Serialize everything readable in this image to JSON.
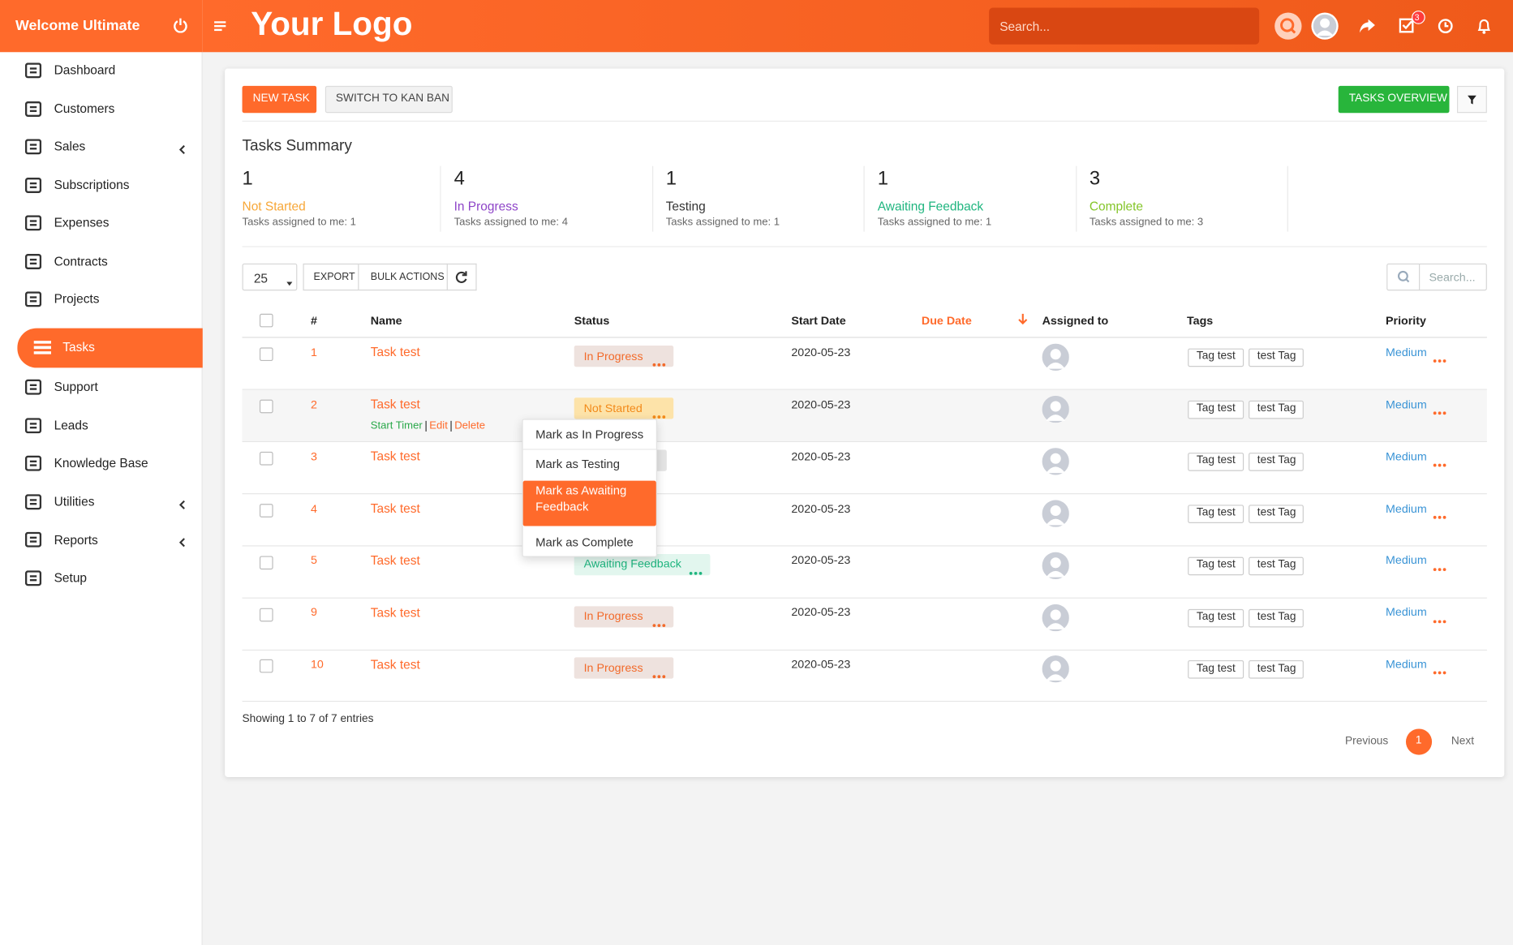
{
  "sidebar": {
    "welcome": "Welcome Ultimate",
    "menu": [
      {
        "label": "Dashboard",
        "submenu": false,
        "active": false
      },
      {
        "label": "Customers",
        "submenu": false,
        "active": false
      },
      {
        "label": "Sales",
        "submenu": true,
        "active": false
      },
      {
        "label": "Subscriptions",
        "submenu": false,
        "active": false
      },
      {
        "label": "Expenses",
        "submenu": false,
        "active": false
      },
      {
        "label": "Contracts",
        "submenu": false,
        "active": false
      },
      {
        "label": "Projects",
        "submenu": false,
        "active": false
      },
      {
        "label": "Tasks",
        "submenu": false,
        "active": true
      },
      {
        "label": "Support",
        "submenu": false,
        "active": false
      },
      {
        "label": "Leads",
        "submenu": false,
        "active": false
      },
      {
        "label": "Knowledge Base",
        "submenu": false,
        "active": false
      },
      {
        "label": "Utilities",
        "submenu": true,
        "active": false
      },
      {
        "label": "Reports",
        "submenu": true,
        "active": false
      },
      {
        "label": "Setup",
        "submenu": false,
        "active": false
      }
    ]
  },
  "header": {
    "logo": "Your Logo",
    "search_placeholder": "Search...",
    "task_badge": "3"
  },
  "toolbar": {
    "new_task": "NEW TASK",
    "switch_view": "SWITCH TO KAN BAN",
    "overview": "TASKS OVERVIEW"
  },
  "summary": {
    "title": "Tasks Summary",
    "items": [
      {
        "count": 1,
        "status": "Not Started",
        "assigned": "Tasks assigned to me: 1",
        "color": "#f7a738"
      },
      {
        "count": 4,
        "status": "In Progress",
        "assigned": "Tasks assigned to me: 4",
        "color": "#8e44c8"
      },
      {
        "count": 1,
        "status": "Testing",
        "assigned": "Tasks assigned to me: 1",
        "color": "#333333"
      },
      {
        "count": 1,
        "status": "Awaiting Feedback",
        "assigned": "Tasks assigned to me: 1",
        "color": "#1fb57f"
      },
      {
        "count": 3,
        "status": "Complete",
        "assigned": "Tasks assigned to me: 3",
        "color": "#84c529"
      }
    ]
  },
  "controls": {
    "page_length": 25,
    "export": "EXPORT",
    "bulk_actions": "BULK ACTIONS",
    "search_placeholder": "Search..."
  },
  "table": {
    "columns": [
      "#",
      "Name",
      "Status",
      "Start Date",
      "Due Date",
      "Assigned to",
      "Tags",
      "Priority"
    ],
    "row_actions": [
      "Start Timer",
      "Edit",
      "Delete"
    ],
    "rows": [
      {
        "id": 1,
        "name": "Task test",
        "status": {
          "label": "In Progress",
          "color": "#f26a2a",
          "bg": "#eee2de"
        },
        "start_date": "2020-05-23",
        "tags": [
          "Tag test",
          "test Tag"
        ],
        "priority": "Medium"
      },
      {
        "id": 2,
        "name": "Task test",
        "status": {
          "label": "Not Started",
          "color": "#f28a1a",
          "bg": "#fde3a9"
        },
        "start_date": "2020-05-23",
        "tags": [
          "Tag test",
          "test Tag"
        ],
        "priority": "Medium"
      },
      {
        "id": 3,
        "name": "Task test",
        "status": {
          "label": null,
          "color": "#333333",
          "bg": "#e4e4e4"
        },
        "start_date": "2020-05-23",
        "tags": [
          "Tag test",
          "test Tag"
        ],
        "priority": "Medium"
      },
      {
        "id": 4,
        "name": "Task test",
        "status": {
          "label": null,
          "color": "#333333",
          "bg": "#ffffff"
        },
        "start_date": "2020-05-23",
        "tags": [
          "Tag test",
          "test Tag"
        ],
        "priority": "Medium"
      },
      {
        "id": 5,
        "name": "Task test",
        "status": {
          "label": "Awaiting Feedback",
          "color": "#1fb57f",
          "bg": "#e2f6ee"
        },
        "start_date": "2020-05-23",
        "tags": [
          "Tag test",
          "test Tag"
        ],
        "priority": "Medium"
      },
      {
        "id": 9,
        "name": "Task test",
        "status": {
          "label": "In Progress",
          "color": "#f26a2a",
          "bg": "#eee2de"
        },
        "start_date": "2020-05-23",
        "tags": [
          "Tag test",
          "test Tag"
        ],
        "priority": "Medium"
      },
      {
        "id": 10,
        "name": "Task test",
        "status": {
          "label": "In Progress",
          "color": "#f26a2a",
          "bg": "#eee2de"
        },
        "start_date": "2020-05-23",
        "tags": [
          "Tag test",
          "test Tag"
        ],
        "priority": "Medium"
      }
    ]
  },
  "status_menu": {
    "items": [
      "Mark as In Progress",
      "Mark as Testing",
      "Mark as Awaiting Feedback",
      "Mark as Complete"
    ],
    "highlighted": 2
  },
  "footer": {
    "info": "Showing 1 to 7 of 7 entries",
    "previous": "Previous",
    "page": 1,
    "next": "Next"
  }
}
